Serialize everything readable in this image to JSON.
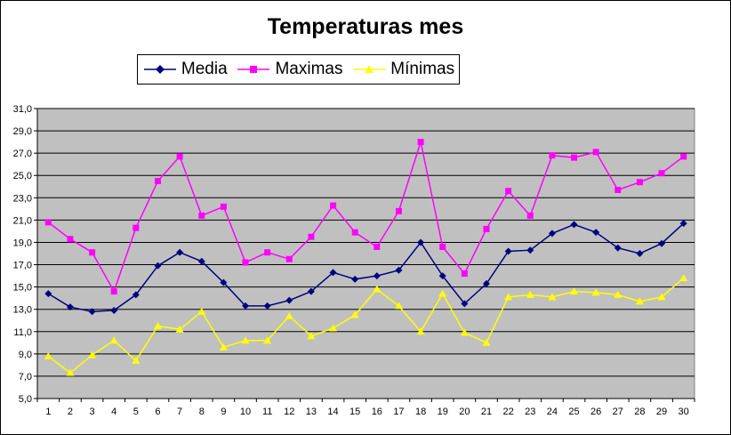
{
  "chart_data": {
    "type": "line",
    "title": "Temperaturas mes",
    "xlabel": "",
    "ylabel": "",
    "x": [
      1,
      2,
      3,
      4,
      5,
      6,
      7,
      8,
      9,
      10,
      11,
      12,
      13,
      14,
      15,
      16,
      17,
      18,
      19,
      20,
      21,
      22,
      23,
      24,
      25,
      26,
      27,
      28,
      29,
      30
    ],
    "ylim": [
      5.0,
      31.0
    ],
    "yticks": [
      "5,0",
      "7,0",
      "9,0",
      "11,0",
      "13,0",
      "15,0",
      "17,0",
      "19,0",
      "21,0",
      "23,0",
      "25,0",
      "27,0",
      "29,0",
      "31,0"
    ],
    "grid": true,
    "legend_position": "top",
    "plot_background": "#c0c0c0",
    "series": [
      {
        "name": "Media",
        "color": "#000080",
        "marker": "diamond",
        "values": [
          14.4,
          13.2,
          12.8,
          12.9,
          14.3,
          16.9,
          18.1,
          17.3,
          15.4,
          13.3,
          13.3,
          13.8,
          14.6,
          16.3,
          15.7,
          16.0,
          16.5,
          19.0,
          16.0,
          13.5,
          15.3,
          18.2,
          18.3,
          19.8,
          20.6,
          19.9,
          18.5,
          18.0,
          18.9,
          20.7
        ]
      },
      {
        "name": "Maximas",
        "color": "#ff00ff",
        "marker": "square",
        "values": [
          20.8,
          19.3,
          18.1,
          14.6,
          20.3,
          24.5,
          26.7,
          21.4,
          22.2,
          17.2,
          18.1,
          17.5,
          19.5,
          22.3,
          19.9,
          18.6,
          21.8,
          28.0,
          18.6,
          16.2,
          20.2,
          23.6,
          21.4,
          26.8,
          26.6,
          27.1,
          23.7,
          24.4,
          25.2,
          26.7
        ]
      },
      {
        "name": "Mínimas",
        "color": "#ffff00",
        "marker": "triangle",
        "values": [
          8.8,
          7.3,
          8.9,
          10.2,
          8.4,
          11.5,
          11.2,
          12.8,
          9.6,
          10.2,
          10.2,
          12.4,
          10.6,
          11.3,
          12.5,
          14.8,
          13.3,
          11.0,
          14.4,
          10.9,
          10.0,
          14.1,
          14.3,
          14.1,
          14.6,
          14.5,
          14.3,
          13.7,
          14.1,
          15.8
        ]
      }
    ]
  }
}
